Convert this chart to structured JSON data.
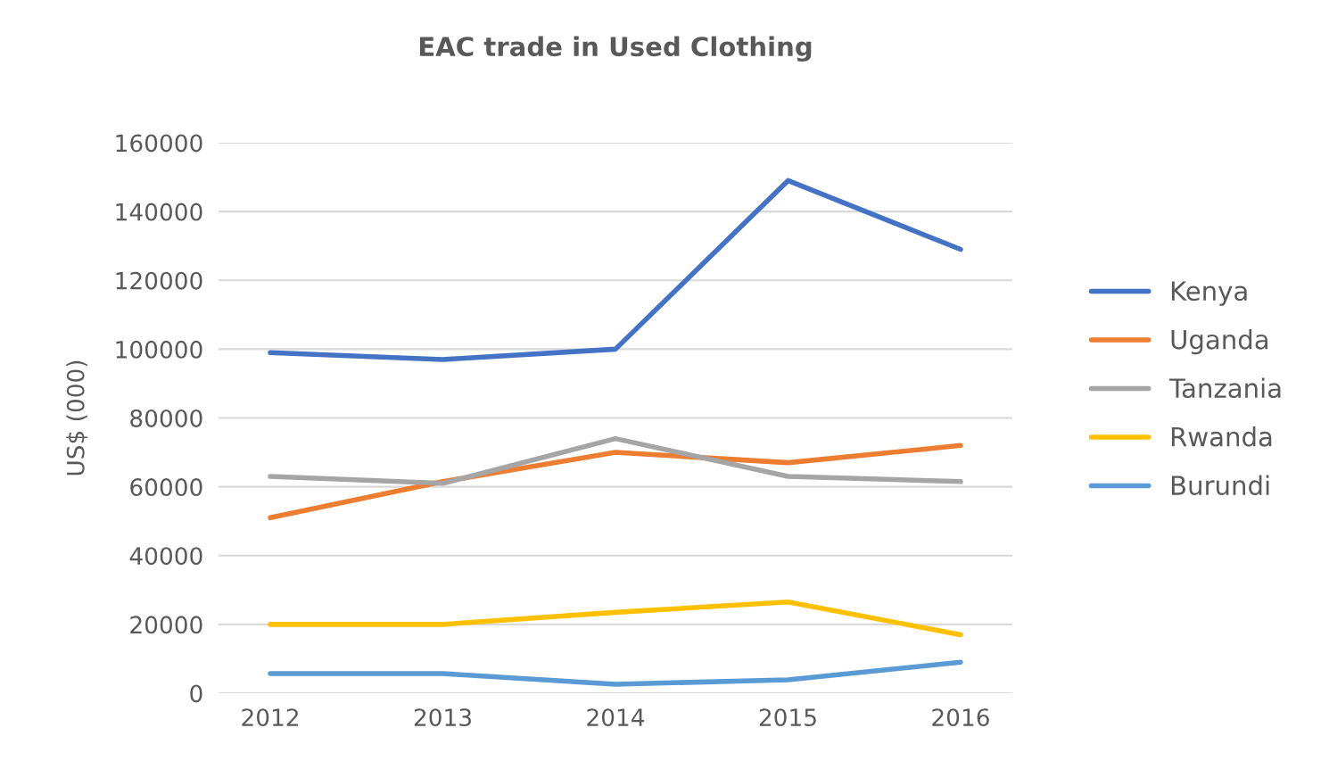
{
  "chart_data": {
    "type": "line",
    "title": "EAC trade in Used Clothing",
    "ylabel": "US$ (000)",
    "categories": [
      "2012",
      "2013",
      "2014",
      "2015",
      "2016"
    ],
    "series": [
      {
        "name": "Kenya",
        "color": "#4472c4",
        "values": [
          99000,
          97000,
          100000,
          149000,
          129000
        ]
      },
      {
        "name": "Uganda",
        "color": "#ed7d31",
        "values": [
          51000,
          61500,
          70000,
          67000,
          72000
        ]
      },
      {
        "name": "Tanzania",
        "color": "#a5a5a5",
        "values": [
          63000,
          61000,
          74000,
          63000,
          61500
        ]
      },
      {
        "name": "Rwanda",
        "color": "#ffc000",
        "values": [
          20000,
          20000,
          23500,
          26500,
          17000
        ]
      },
      {
        "name": "Burundi",
        "color": "#5b9bd5",
        "values": [
          5700,
          5700,
          2600,
          3900,
          9000
        ]
      }
    ],
    "ylim": [
      0,
      160000
    ],
    "yticks": [
      0,
      20000,
      40000,
      60000,
      80000,
      100000,
      120000,
      140000,
      160000
    ],
    "grid": "y",
    "legend": "right",
    "marker": "none",
    "line_style": "solid"
  }
}
